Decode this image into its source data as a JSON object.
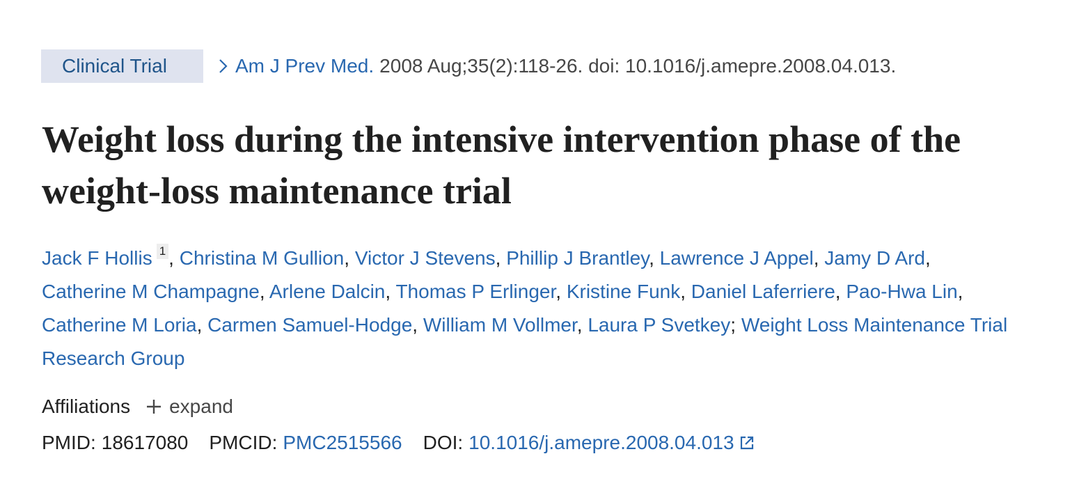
{
  "badge": "Clinical Trial",
  "citation": {
    "journal": "Am J Prev Med.",
    "details": "2008 Aug;35(2):118-26. doi: 10.1016/j.amepre.2008.04.013."
  },
  "title": "Weight loss during the intensive intervention phase of the weight-loss maintenance trial",
  "authors": [
    {
      "name": "Jack F Hollis",
      "affiliation": 1,
      "sep": ","
    },
    {
      "name": "Christina M Gullion",
      "sep": ","
    },
    {
      "name": "Victor J Stevens",
      "sep": ","
    },
    {
      "name": "Phillip J Brantley",
      "sep": ","
    },
    {
      "name": "Lawrence J Appel",
      "sep": ","
    },
    {
      "name": "Jamy D Ard",
      "sep": ","
    },
    {
      "name": "Catherine M Champagne",
      "sep": ","
    },
    {
      "name": "Arlene Dalcin",
      "sep": ","
    },
    {
      "name": "Thomas P Erlinger",
      "sep": ","
    },
    {
      "name": "Kristine Funk",
      "sep": ","
    },
    {
      "name": "Daniel Laferriere",
      "sep": ","
    },
    {
      "name": "Pao-Hwa Lin",
      "sep": ","
    },
    {
      "name": "Catherine M Loria",
      "sep": ","
    },
    {
      "name": "Carmen Samuel-Hodge",
      "sep": ","
    },
    {
      "name": "William M Vollmer",
      "sep": ","
    },
    {
      "name": "Laura P Svetkey",
      "sep": ";"
    }
  ],
  "group": "Weight Loss Maintenance Trial Research Group",
  "affiliations": {
    "label": "Affiliations",
    "toggle": "expand"
  },
  "identifiers": [
    {
      "label": "PMID:",
      "value": "18617080"
    },
    {
      "label": "PMCID:",
      "value": "PMC2515566"
    },
    {
      "label": "DOI:",
      "value": "10.1016/j.amepre.2008.04.013"
    }
  ]
}
